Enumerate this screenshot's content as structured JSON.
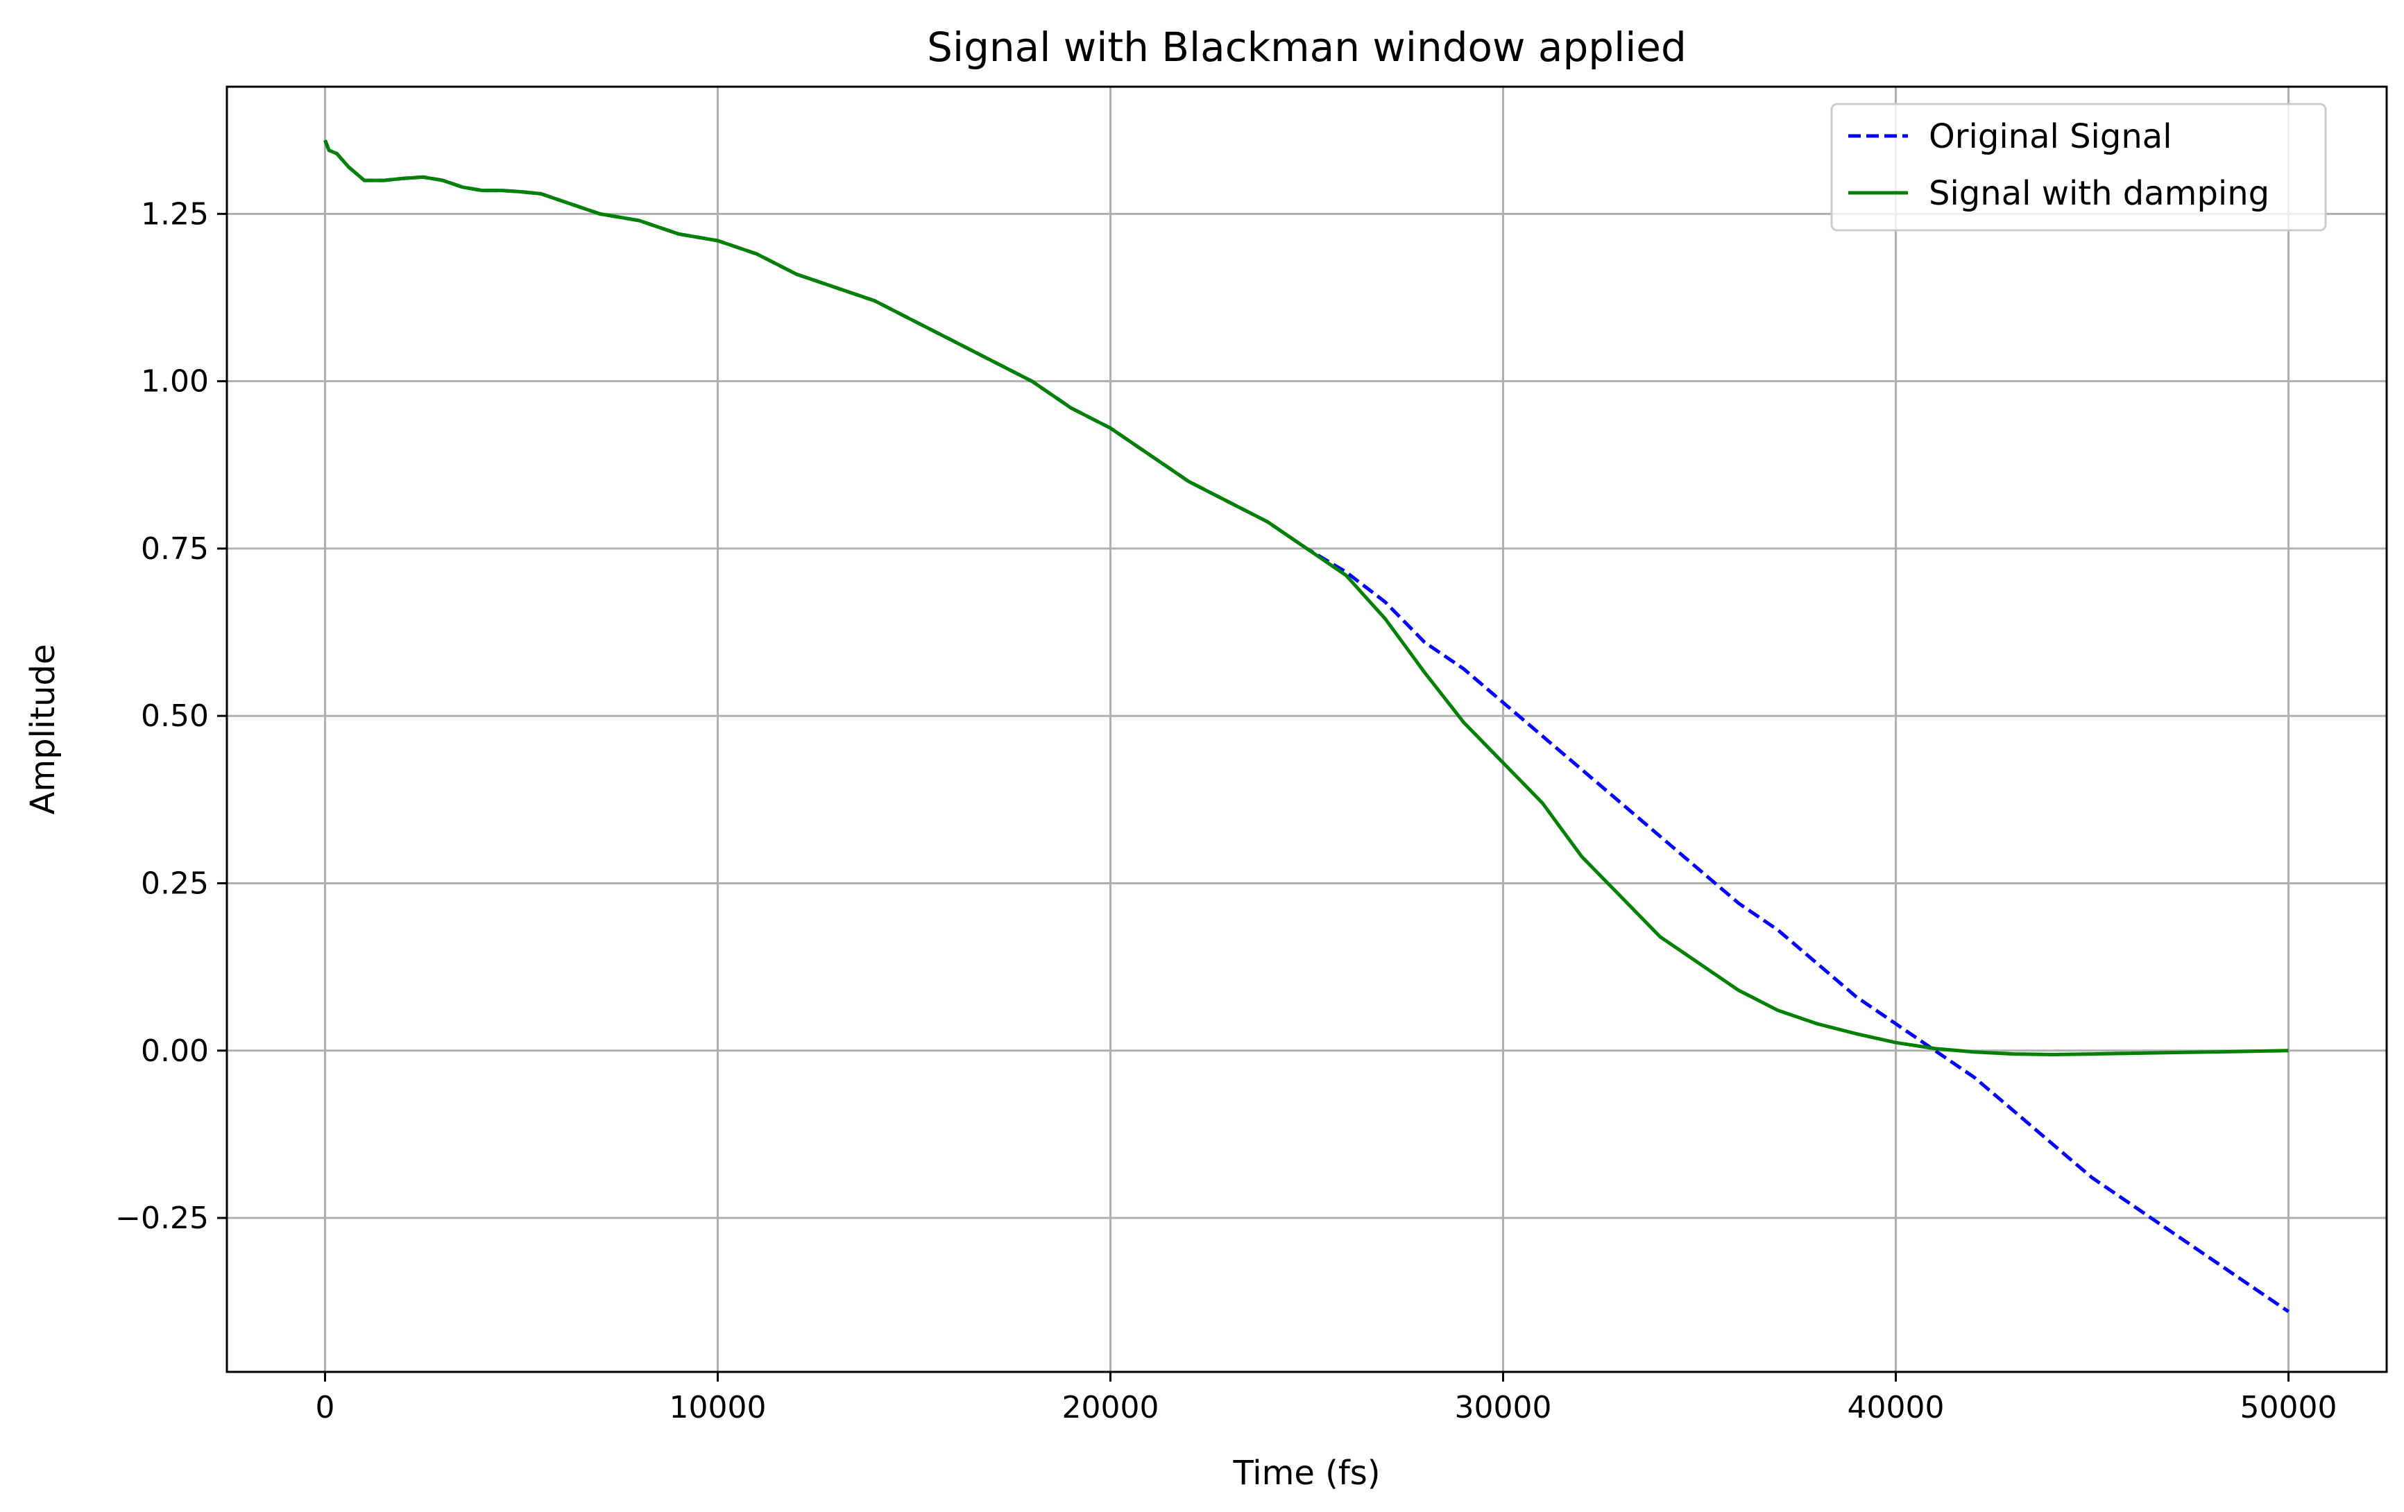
{
  "chart_data": {
    "type": "line",
    "title": "Signal with Blackman window applied",
    "xlabel": "Time (fs)",
    "ylabel": "Amplitude",
    "xlim": [
      -2500,
      52500
    ],
    "ylim": [
      -0.48,
      1.44
    ],
    "xticks": [
      0,
      10000,
      20000,
      30000,
      40000,
      50000
    ],
    "xtick_labels": [
      "0",
      "10000",
      "20000",
      "30000",
      "40000",
      "50000"
    ],
    "yticks": [
      -0.25,
      0.0,
      0.25,
      0.5,
      0.75,
      1.0,
      1.25
    ],
    "ytick_labels": [
      "−0.25",
      "0.00",
      "0.25",
      "0.50",
      "0.75",
      "1.00",
      "1.25"
    ],
    "grid": true,
    "legend_position": "top-right",
    "series": [
      {
        "name": "Original Signal",
        "color": "#0000ff",
        "style": "dashed",
        "x": [
          0,
          100,
          300,
          600,
          1000,
          1500,
          2000,
          2500,
          3000,
          3500,
          4000,
          4500,
          5000,
          5500,
          6000,
          6500,
          7000,
          8000,
          9000,
          10000,
          11000,
          12000,
          13000,
          14000,
          15000,
          16000,
          17000,
          18000,
          19000,
          20000,
          21000,
          22000,
          23000,
          24000,
          25000,
          26000,
          27000,
          28000,
          29000,
          30000,
          31000,
          32000,
          33000,
          34000,
          35000,
          36000,
          37000,
          38000,
          39000,
          40000,
          41000,
          42000,
          43000,
          44000,
          45000,
          46000,
          47000,
          48000,
          49000,
          50000
        ],
        "y": [
          1.36,
          1.345,
          1.34,
          1.32,
          1.3,
          1.3,
          1.303,
          1.305,
          1.3,
          1.29,
          1.285,
          1.285,
          1.283,
          1.28,
          1.27,
          1.26,
          1.25,
          1.24,
          1.22,
          1.21,
          1.19,
          1.16,
          1.14,
          1.12,
          1.09,
          1.06,
          1.03,
          1.0,
          0.96,
          0.93,
          0.89,
          0.85,
          0.82,
          0.79,
          0.75,
          0.715,
          0.67,
          0.61,
          0.57,
          0.52,
          0.47,
          0.42,
          0.37,
          0.32,
          0.27,
          0.22,
          0.18,
          0.13,
          0.08,
          0.04,
          0.0,
          -0.04,
          -0.09,
          -0.14,
          -0.19,
          -0.23,
          -0.27,
          -0.31,
          -0.35,
          -0.39
        ]
      },
      {
        "name": "Signal with damping",
        "color": "#008000",
        "style": "solid",
        "x": [
          0,
          100,
          300,
          600,
          1000,
          1500,
          2000,
          2500,
          3000,
          3500,
          4000,
          4500,
          5000,
          5500,
          6000,
          6500,
          7000,
          8000,
          9000,
          10000,
          11000,
          12000,
          13000,
          14000,
          15000,
          16000,
          17000,
          18000,
          19000,
          20000,
          21000,
          22000,
          23000,
          24000,
          25000,
          26000,
          27000,
          28000,
          29000,
          30000,
          31000,
          32000,
          33000,
          34000,
          35000,
          36000,
          37000,
          38000,
          39000,
          40000,
          41000,
          42000,
          43000,
          44000,
          45000,
          46000,
          47000,
          48000,
          49000,
          50000
        ],
        "y": [
          1.36,
          1.345,
          1.34,
          1.32,
          1.3,
          1.3,
          1.303,
          1.305,
          1.3,
          1.29,
          1.285,
          1.285,
          1.283,
          1.28,
          1.27,
          1.26,
          1.25,
          1.24,
          1.22,
          1.21,
          1.19,
          1.16,
          1.14,
          1.12,
          1.09,
          1.06,
          1.03,
          1.0,
          0.96,
          0.93,
          0.89,
          0.85,
          0.82,
          0.79,
          0.75,
          0.71,
          0.645,
          0.565,
          0.49,
          0.43,
          0.37,
          0.29,
          0.23,
          0.17,
          0.13,
          0.09,
          0.06,
          0.04,
          0.025,
          0.012,
          0.003,
          -0.002,
          -0.005,
          -0.006,
          -0.005,
          -0.004,
          -0.003,
          -0.002,
          -0.001,
          0.0
        ]
      }
    ]
  }
}
